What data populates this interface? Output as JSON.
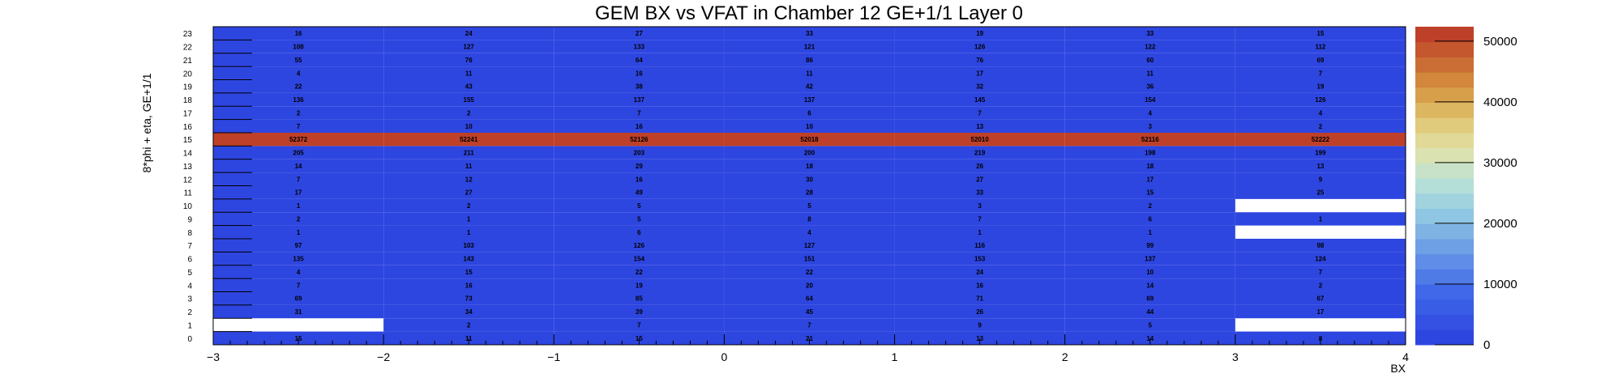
{
  "chart_data": {
    "type": "heatmap",
    "title": "GEM BX vs VFAT in Chamber 12 GE+1/1 Layer 0",
    "xlabel": "BX",
    "ylabel": "8*phi + eta, GE+1/1",
    "xlim": [
      -3,
      4
    ],
    "ylim": [
      0,
      24
    ],
    "x_ticks": [
      "−3",
      "−2",
      "−1",
      "0",
      "1",
      "2",
      "3",
      "4"
    ],
    "x_bins": [
      -2.5,
      -1.5,
      -0.5,
      0.5,
      1.5,
      2.5,
      3.5
    ],
    "y_bins": [
      0,
      1,
      2,
      3,
      4,
      5,
      6,
      7,
      8,
      9,
      10,
      11,
      12,
      13,
      14,
      15,
      16,
      17,
      18,
      19,
      20,
      21,
      22,
      23
    ],
    "zlim": [
      0,
      52372
    ],
    "colorbar_ticks": [
      "0",
      "10000",
      "20000",
      "30000",
      "40000",
      "50000"
    ],
    "values": [
      [
        15,
        null,
        31,
        69,
        7,
        4,
        135,
        97,
        1,
        2,
        1,
        17,
        7,
        14,
        205,
        52372,
        7,
        2,
        136,
        22,
        4,
        55,
        108,
        16
      ],
      [
        11,
        2,
        34,
        73,
        16,
        15,
        143,
        103,
        1,
        1,
        2,
        27,
        12,
        11,
        211,
        52241,
        10,
        2,
        155,
        43,
        11,
        76,
        127,
        24
      ],
      [
        15,
        7,
        39,
        85,
        19,
        22,
        154,
        126,
        6,
        5,
        5,
        49,
        16,
        29,
        203,
        52126,
        16,
        7,
        137,
        38,
        16,
        64,
        133,
        27
      ],
      [
        21,
        7,
        45,
        64,
        20,
        22,
        151,
        127,
        4,
        8,
        5,
        28,
        30,
        18,
        200,
        52018,
        10,
        6,
        137,
        42,
        11,
        86,
        121,
        33
      ],
      [
        13,
        9,
        26,
        71,
        16,
        24,
        153,
        116,
        1,
        7,
        3,
        33,
        27,
        26,
        219,
        52010,
        13,
        7,
        145,
        32,
        17,
        76,
        126,
        19
      ],
      [
        14,
        5,
        44,
        69,
        14,
        10,
        137,
        99,
        1,
        6,
        2,
        15,
        17,
        18,
        198,
        52116,
        3,
        4,
        154,
        36,
        11,
        60,
        122,
        33
      ],
      [
        8,
        null,
        17,
        67,
        2,
        7,
        124,
        98,
        null,
        1,
        null,
        25,
        9,
        13,
        199,
        52222,
        2,
        4,
        126,
        19,
        7,
        69,
        112,
        15
      ]
    ]
  }
}
